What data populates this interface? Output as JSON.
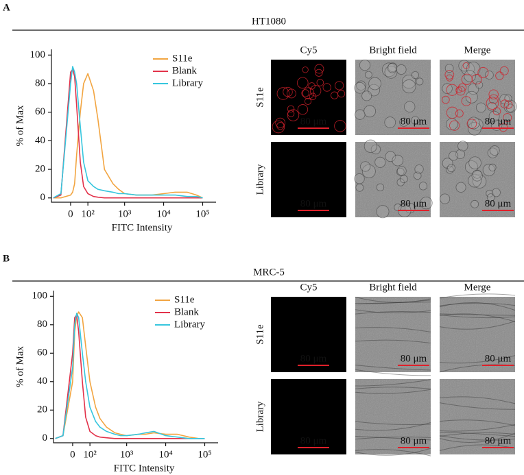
{
  "panels": [
    {
      "label": "A",
      "title": "HT1080",
      "image_grid": {
        "columns": [
          "Cy5",
          "Bright field",
          "Merge"
        ],
        "rows": [
          "S11e",
          "Library"
        ],
        "scale_bar": "80 μm"
      }
    },
    {
      "label": "B",
      "title": "MRC-5",
      "image_grid": {
        "columns": [
          "Cy5",
          "Bright field",
          "Merge"
        ],
        "rows": [
          "S11e",
          "Library"
        ],
        "scale_bar": "80 μm"
      }
    }
  ],
  "chart_data": [
    {
      "type": "line",
      "xlabel": "FITC Intensity",
      "ylabel": "% of Max",
      "xscale": "biexponential",
      "legend": "upper right",
      "x": [
        -100,
        -50,
        0,
        10,
        20,
        30,
        50,
        70,
        100,
        150,
        200,
        300,
        500,
        700,
        1000,
        2000,
        3000,
        5000,
        10000,
        20000,
        40000,
        70000,
        100000
      ],
      "xlim": [
        -115,
        220000
      ],
      "ylim": [
        -3,
        104
      ],
      "xticks": [
        0,
        {
          "value": 100,
          "label": "10²"
        },
        {
          "value": 1000,
          "label": "10³"
        },
        {
          "value": 10000,
          "label": "10⁴"
        },
        {
          "value": 100000,
          "label": "10⁵"
        }
      ],
      "yticks": [
        0,
        20,
        40,
        60,
        80,
        100
      ],
      "series": [
        {
          "name": "S11e",
          "color": "#f2a541",
          "values": [
            0,
            0,
            2,
            4,
            10,
            30,
            60,
            80,
            87,
            75,
            55,
            20,
            10,
            6,
            3,
            2,
            2,
            2,
            3,
            4,
            4,
            2,
            0
          ]
        },
        {
          "name": "Blank",
          "color": "#e2324a",
          "values": [
            0,
            2,
            88,
            90,
            85,
            65,
            25,
            8,
            3,
            1,
            0.5,
            0,
            0,
            0,
            0,
            0,
            0,
            0,
            0,
            0,
            0,
            0,
            0
          ]
        },
        {
          "name": "Library",
          "color": "#36c6de",
          "values": [
            0,
            3,
            80,
            92,
            88,
            80,
            50,
            25,
            12,
            8,
            6,
            5,
            4,
            3,
            3,
            2,
            2,
            2,
            2,
            2,
            1,
            1,
            0
          ]
        }
      ]
    },
    {
      "type": "line",
      "xlabel": "FITC Intensity",
      "ylabel": "% of Max",
      "xscale": "biexponential",
      "legend": "upper right",
      "x": [
        -100,
        -50,
        0,
        10,
        20,
        30,
        50,
        70,
        100,
        150,
        200,
        300,
        500,
        700,
        1000,
        2000,
        3000,
        5000,
        10000,
        20000,
        40000,
        70000,
        100000
      ],
      "xlim": [
        -115,
        220000
      ],
      "ylim": [
        -3,
        104
      ],
      "xticks": [
        0,
        {
          "value": 100,
          "label": "10²"
        },
        {
          "value": 1000,
          "label": "10³"
        },
        {
          "value": 10000,
          "label": "10⁴"
        },
        {
          "value": 100000,
          "label": "10⁵"
        }
      ],
      "yticks": [
        0,
        20,
        40,
        60,
        80,
        100
      ],
      "series": [
        {
          "name": "S11e",
          "color": "#f2a541",
          "values": [
            0,
            2,
            40,
            75,
            86,
            89,
            85,
            65,
            40,
            22,
            14,
            8,
            4,
            3,
            2,
            3,
            3,
            4,
            3,
            3,
            1,
            0,
            0
          ]
        },
        {
          "name": "Blank",
          "color": "#e2324a",
          "values": [
            0,
            2,
            60,
            85,
            87,
            75,
            40,
            15,
            5,
            2,
            1,
            0.5,
            0,
            0,
            0,
            0,
            0,
            0,
            0,
            0,
            0,
            0,
            0
          ]
        },
        {
          "name": "Library",
          "color": "#36c6de",
          "values": [
            0,
            2,
            50,
            80,
            88,
            85,
            60,
            40,
            22,
            12,
            8,
            5,
            3,
            2,
            2,
            3,
            4,
            5,
            2,
            1,
            0,
            0,
            0
          ]
        }
      ]
    }
  ]
}
